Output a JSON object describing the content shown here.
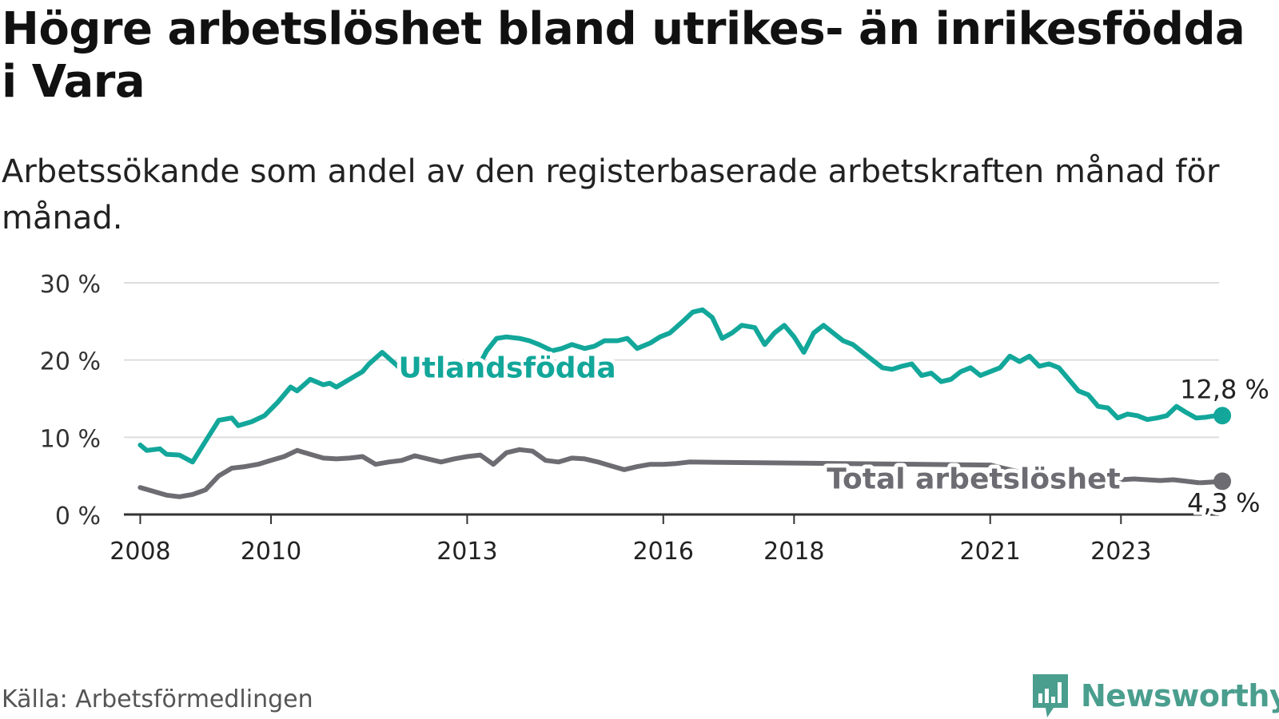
{
  "header": {
    "title": "Högre arbetslöshet bland utrikes- än inrikesfödda i Vara",
    "subtitle": "Arbetssökande som andel av den registerbaserade arbetskraften månad för månad."
  },
  "footer": {
    "source": "Källa: Arbetsförmedlingen",
    "brand": "Newsworthy"
  },
  "colors": {
    "teal": "#12a79a",
    "gray": "#6d6c72",
    "grid": "#dddddd",
    "axis": "#333333",
    "brand": "#4a9e8e"
  },
  "chart_data": {
    "type": "line",
    "title": "Högre arbetslöshet bland utrikes- än inrikesfödda i Vara",
    "ylim": [
      0,
      30
    ],
    "yticks": [
      0,
      10,
      20,
      30
    ],
    "ytick_labels": [
      "0 %",
      "10 %",
      "20 %",
      "30 %"
    ],
    "xlim": [
      2007.75,
      2024.5
    ],
    "xticks": [
      2008,
      2010,
      2013,
      2016,
      2018,
      2021,
      2023
    ],
    "xtick_labels": [
      "2008",
      "2010",
      "2013",
      "2016",
      "2018",
      "2021",
      "2023"
    ],
    "grid": true,
    "series": [
      {
        "name": "Utlandsfödda",
        "label": "Utlandsfödda",
        "color": "#12a79a",
        "end_label": "12,8 %",
        "end_value": 12.8,
        "points": [
          [
            2008.0,
            9.0
          ],
          [
            2008.1,
            8.3
          ],
          [
            2008.3,
            8.5
          ],
          [
            2008.4,
            7.8
          ],
          [
            2008.6,
            7.7
          ],
          [
            2008.8,
            6.8
          ],
          [
            2009.0,
            9.5
          ],
          [
            2009.2,
            12.2
          ],
          [
            2009.4,
            12.5
          ],
          [
            2009.5,
            11.5
          ],
          [
            2009.7,
            12.0
          ],
          [
            2009.9,
            12.8
          ],
          [
            2010.1,
            14.5
          ],
          [
            2010.3,
            16.5
          ],
          [
            2010.4,
            16.0
          ],
          [
            2010.6,
            17.5
          ],
          [
            2010.8,
            16.8
          ],
          [
            2010.9,
            17.0
          ],
          [
            2011.0,
            16.5
          ],
          [
            2011.2,
            17.5
          ],
          [
            2011.4,
            18.5
          ],
          [
            2011.5,
            19.5
          ],
          [
            2011.7,
            21.0
          ],
          [
            2011.9,
            19.5
          ],
          [
            2012.0,
            18.7
          ],
          [
            2013.2,
            19.6
          ],
          [
            2013.3,
            21.2
          ],
          [
            2013.45,
            22.8
          ],
          [
            2013.6,
            23.0
          ],
          [
            2013.8,
            22.8
          ],
          [
            2013.95,
            22.5
          ],
          [
            2014.1,
            22.0
          ],
          [
            2014.3,
            21.2
          ],
          [
            2014.45,
            21.5
          ],
          [
            2014.6,
            22.0
          ],
          [
            2014.8,
            21.5
          ],
          [
            2014.95,
            21.8
          ],
          [
            2015.1,
            22.5
          ],
          [
            2015.3,
            22.5
          ],
          [
            2015.45,
            22.8
          ],
          [
            2015.6,
            21.5
          ],
          [
            2015.8,
            22.2
          ],
          [
            2015.95,
            23.0
          ],
          [
            2016.1,
            23.5
          ],
          [
            2016.3,
            25.0
          ],
          [
            2016.45,
            26.2
          ],
          [
            2016.6,
            26.5
          ],
          [
            2016.75,
            25.5
          ],
          [
            2016.9,
            22.8
          ],
          [
            2017.05,
            23.5
          ],
          [
            2017.2,
            24.5
          ],
          [
            2017.4,
            24.2
          ],
          [
            2017.55,
            22.0
          ],
          [
            2017.7,
            23.5
          ],
          [
            2017.85,
            24.5
          ],
          [
            2018.0,
            23.0
          ],
          [
            2018.15,
            21.0
          ],
          [
            2018.3,
            23.5
          ],
          [
            2018.45,
            24.5
          ],
          [
            2018.6,
            23.5
          ],
          [
            2018.75,
            22.5
          ],
          [
            2018.9,
            22.0
          ],
          [
            2019.05,
            21.0
          ],
          [
            2019.2,
            20.0
          ],
          [
            2019.35,
            19.0
          ],
          [
            2019.5,
            18.8
          ],
          [
            2019.65,
            19.2
          ],
          [
            2019.8,
            19.5
          ],
          [
            2019.95,
            18.0
          ],
          [
            2020.1,
            18.3
          ],
          [
            2020.25,
            17.2
          ],
          [
            2020.4,
            17.5
          ],
          [
            2020.55,
            18.5
          ],
          [
            2020.7,
            19.0
          ],
          [
            2020.85,
            18.0
          ],
          [
            2021.0,
            18.5
          ],
          [
            2021.15,
            19.0
          ],
          [
            2021.3,
            20.5
          ],
          [
            2021.45,
            19.8
          ],
          [
            2021.6,
            20.5
          ],
          [
            2021.75,
            19.2
          ],
          [
            2021.9,
            19.5
          ],
          [
            2022.05,
            19.0
          ],
          [
            2022.2,
            17.5
          ],
          [
            2022.35,
            16.0
          ],
          [
            2022.5,
            15.5
          ],
          [
            2022.65,
            14.0
          ],
          [
            2022.8,
            13.8
          ],
          [
            2022.95,
            12.5
          ],
          [
            2023.1,
            13.0
          ],
          [
            2023.25,
            12.8
          ],
          [
            2023.4,
            12.3
          ],
          [
            2023.55,
            12.5
          ],
          [
            2023.7,
            12.8
          ],
          [
            2023.85,
            14.0
          ],
          [
            2024.0,
            13.2
          ],
          [
            2024.15,
            12.5
          ],
          [
            2024.3,
            12.6
          ],
          [
            2024.45,
            12.8
          ],
          [
            2024.55,
            12.8
          ]
        ]
      },
      {
        "name": "Total arbetslöshet",
        "label": "Total arbetslöshet",
        "color": "#6d6c72",
        "end_label": "4,3 %",
        "end_value": 4.3,
        "points": [
          [
            2008.0,
            3.5
          ],
          [
            2008.2,
            3.0
          ],
          [
            2008.4,
            2.5
          ],
          [
            2008.6,
            2.3
          ],
          [
            2008.8,
            2.6
          ],
          [
            2009.0,
            3.2
          ],
          [
            2009.2,
            5.0
          ],
          [
            2009.4,
            6.0
          ],
          [
            2009.6,
            6.2
          ],
          [
            2009.8,
            6.5
          ],
          [
            2010.0,
            7.0
          ],
          [
            2010.2,
            7.5
          ],
          [
            2010.4,
            8.3
          ],
          [
            2010.6,
            7.8
          ],
          [
            2010.8,
            7.3
          ],
          [
            2011.0,
            7.2
          ],
          [
            2011.2,
            7.3
          ],
          [
            2011.4,
            7.5
          ],
          [
            2011.6,
            6.5
          ],
          [
            2011.8,
            6.8
          ],
          [
            2012.0,
            7.0
          ],
          [
            2012.2,
            7.6
          ],
          [
            2012.4,
            7.2
          ],
          [
            2012.6,
            6.8
          ],
          [
            2012.8,
            7.2
          ],
          [
            2013.0,
            7.5
          ],
          [
            2013.2,
            7.7
          ],
          [
            2013.4,
            6.5
          ],
          [
            2013.6,
            8.0
          ],
          [
            2013.8,
            8.4
          ],
          [
            2014.0,
            8.2
          ],
          [
            2014.2,
            7.0
          ],
          [
            2014.4,
            6.8
          ],
          [
            2014.6,
            7.3
          ],
          [
            2014.8,
            7.2
          ],
          [
            2015.0,
            6.8
          ],
          [
            2015.2,
            6.3
          ],
          [
            2015.4,
            5.8
          ],
          [
            2015.6,
            6.2
          ],
          [
            2015.8,
            6.5
          ],
          [
            2016.0,
            6.5
          ],
          [
            2016.2,
            6.6
          ],
          [
            2016.4,
            6.8
          ],
          [
            2021.0,
            6.4
          ],
          [
            2021.2,
            6.0
          ],
          [
            2021.4,
            5.6
          ],
          [
            2021.6,
            5.3
          ],
          [
            2021.8,
            5.0
          ],
          [
            2022.0,
            5.0
          ],
          [
            2022.2,
            4.8
          ],
          [
            2022.4,
            4.6
          ],
          [
            2022.6,
            4.5
          ],
          [
            2022.8,
            4.6
          ],
          [
            2023.0,
            4.5
          ],
          [
            2023.2,
            4.6
          ],
          [
            2023.4,
            4.5
          ],
          [
            2023.6,
            4.4
          ],
          [
            2023.8,
            4.5
          ],
          [
            2024.0,
            4.3
          ],
          [
            2024.2,
            4.1
          ],
          [
            2024.4,
            4.2
          ],
          [
            2024.55,
            4.3
          ]
        ]
      }
    ],
    "annotations": [
      {
        "text": "Utlandsfödda",
        "series": 0,
        "x": 2011.95,
        "y": 19.0
      },
      {
        "text": "Total arbetslöshet",
        "series": 1,
        "x": 2018.5,
        "y": 4.6
      }
    ]
  }
}
